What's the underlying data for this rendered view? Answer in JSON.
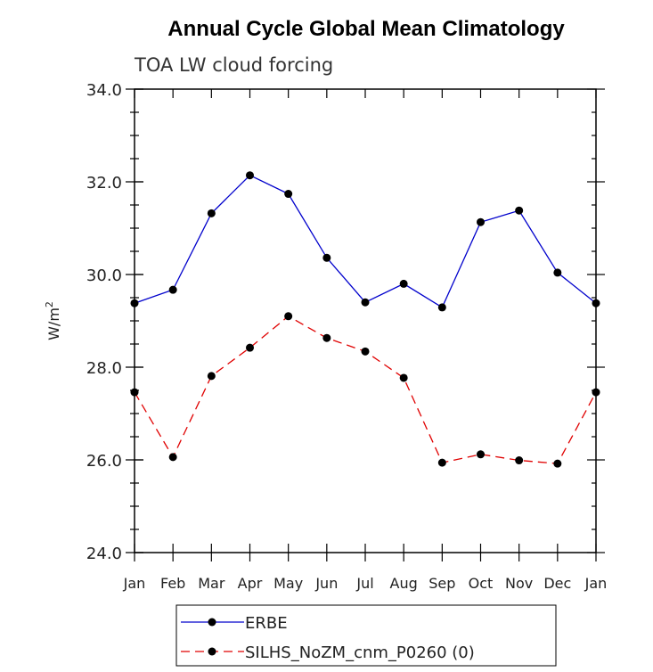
{
  "chart_data": {
    "type": "line",
    "title": "Annual Cycle Global Mean Climatology",
    "subtitle": "TOA LW cloud forcing",
    "ylabel": "W/m",
    "ylabel_sup": "2",
    "xlabel": "",
    "categories": [
      "Jan",
      "Feb",
      "Mar",
      "Apr",
      "May",
      "Jun",
      "Jul",
      "Aug",
      "Sep",
      "Oct",
      "Nov",
      "Dec",
      "Jan"
    ],
    "ylim": [
      24.0,
      34.0
    ],
    "yticks": [
      "24.0",
      "26.0",
      "28.0",
      "30.0",
      "32.0",
      "34.0"
    ],
    "grid": false,
    "legend_position": "bottom",
    "series": [
      {
        "name": "ERBE",
        "color": "#0000cc",
        "dash": "solid",
        "marker": "filled-circle",
        "values": [
          29.38,
          29.67,
          31.32,
          32.14,
          31.74,
          30.36,
          29.4,
          29.8,
          29.29,
          31.13,
          31.38,
          30.04,
          29.38
        ]
      },
      {
        "name": "SILHS_NoZM_cnm_P0260 (0)",
        "color": "#e00000",
        "dash": "dashed",
        "marker": "filled-circle",
        "values": [
          27.46,
          26.06,
          27.81,
          28.42,
          29.1,
          28.63,
          28.34,
          27.77,
          25.94,
          26.12,
          25.99,
          25.92,
          27.46
        ]
      }
    ]
  }
}
